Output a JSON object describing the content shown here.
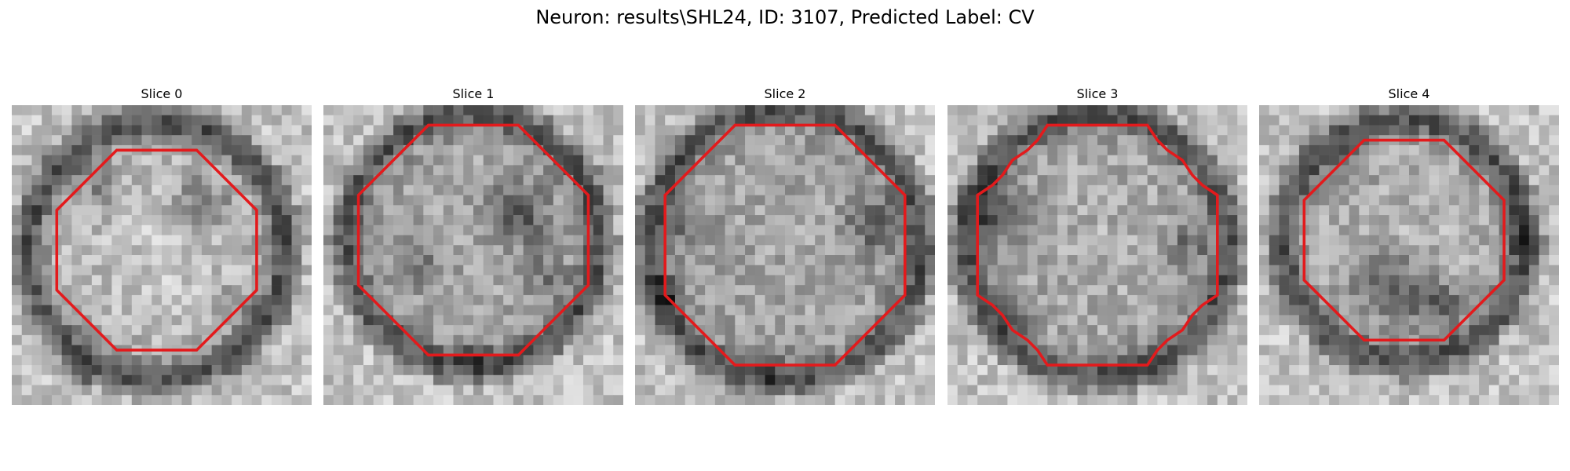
{
  "figure": {
    "title": "Neuron: results\\SHL24, ID: 3107, Predicted Label: CV"
  },
  "panels": [
    {
      "title": "Slice 0"
    },
    {
      "title": "Slice 1"
    },
    {
      "title": "Slice 2"
    },
    {
      "title": "Slice 3"
    },
    {
      "title": "Slice 4"
    }
  ],
  "colors": {
    "contour": "#e31a1c"
  }
}
